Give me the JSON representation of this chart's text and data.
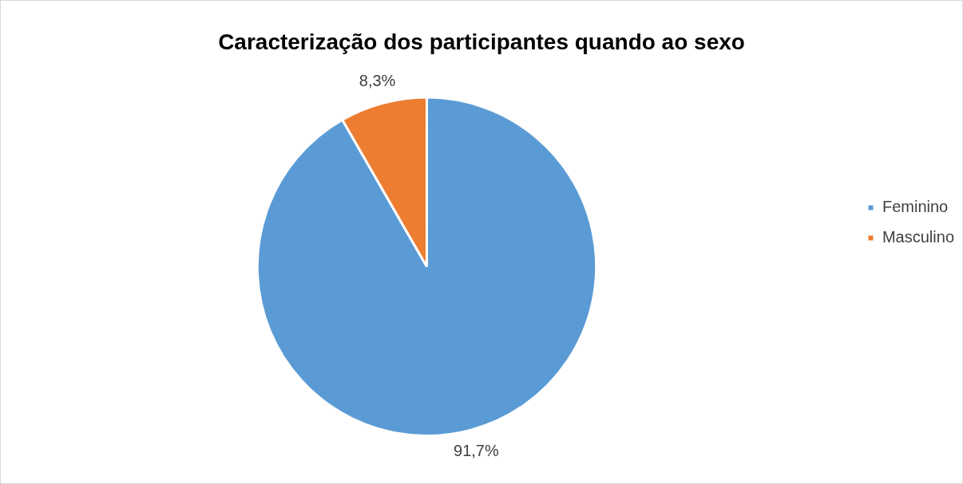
{
  "chart_data": {
    "type": "pie",
    "title": "Caracterização dos participantes quando ao sexo",
    "categories": [
      "Feminino",
      "Masculino"
    ],
    "values": [
      91.7,
      8.3
    ],
    "colors": [
      "#5b9bd5",
      "#ed7d31"
    ],
    "value_labels": [
      "91,7%",
      "8,3%"
    ],
    "legend": "right"
  }
}
